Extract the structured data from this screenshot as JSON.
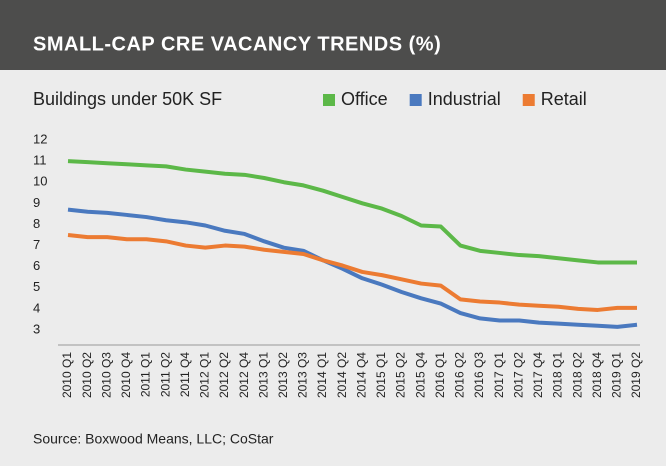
{
  "chart_data": {
    "type": "line",
    "title": "SMALL-CAP CRE VACANCY TRENDS (%)",
    "subtitle": "Buildings under 50K SF",
    "source": "Source: Boxwood Means, LLC; CoStar",
    "categories": [
      "2010 Q1",
      "2010 Q2",
      "2010 Q3",
      "2010 Q4",
      "2011 Q1",
      "2011 Q2",
      "2011 Q4",
      "2012 Q1",
      "2012 Q2",
      "2012 Q4",
      "2013 Q1",
      "2013 Q2",
      "2013 Q3",
      "2014 Q1",
      "2014 Q2",
      "2014 Q4",
      "2015 Q1",
      "2015 Q2",
      "2015 Q4",
      "2016 Q1",
      "2016 Q2",
      "2016 Q3",
      "2017 Q1",
      "2017 Q2",
      "2017 Q4",
      "2018 Q1",
      "2018 Q2",
      "2018 Q4",
      "2019 Q1",
      "2019 Q2"
    ],
    "series": [
      {
        "name": "Office",
        "color": "#5cb848",
        "values": [
          11.0,
          10.95,
          10.9,
          10.85,
          10.8,
          10.75,
          10.6,
          10.5,
          10.4,
          10.35,
          10.2,
          10.0,
          9.85,
          9.6,
          9.3,
          9.0,
          8.75,
          8.4,
          7.95,
          7.9,
          7.0,
          6.75,
          6.65,
          6.55,
          6.5,
          6.4,
          6.3,
          6.2,
          6.2,
          6.2
        ]
      },
      {
        "name": "Industrial",
        "color": "#4a79bf",
        "values": [
          8.7,
          8.6,
          8.55,
          8.45,
          8.35,
          8.2,
          8.1,
          7.95,
          7.7,
          7.55,
          7.2,
          6.9,
          6.75,
          6.3,
          5.9,
          5.45,
          5.15,
          4.8,
          4.5,
          4.25,
          3.8,
          3.55,
          3.45,
          3.45,
          3.35,
          3.3,
          3.25,
          3.2,
          3.15,
          3.25
        ]
      },
      {
        "name": "Retail",
        "color": "#ec7b32",
        "values": [
          7.5,
          7.4,
          7.4,
          7.3,
          7.3,
          7.2,
          7.0,
          6.9,
          7.0,
          6.95,
          6.8,
          6.7,
          6.6,
          6.3,
          6.05,
          5.75,
          5.6,
          5.4,
          5.2,
          5.1,
          4.45,
          4.35,
          4.3,
          4.2,
          4.15,
          4.1,
          4.0,
          3.95,
          4.05,
          4.05
        ]
      }
    ],
    "ylim": [
      3,
      12
    ],
    "yticks": [
      3,
      4,
      5,
      6,
      7,
      8,
      9,
      10,
      11,
      12
    ],
    "grid": false
  }
}
